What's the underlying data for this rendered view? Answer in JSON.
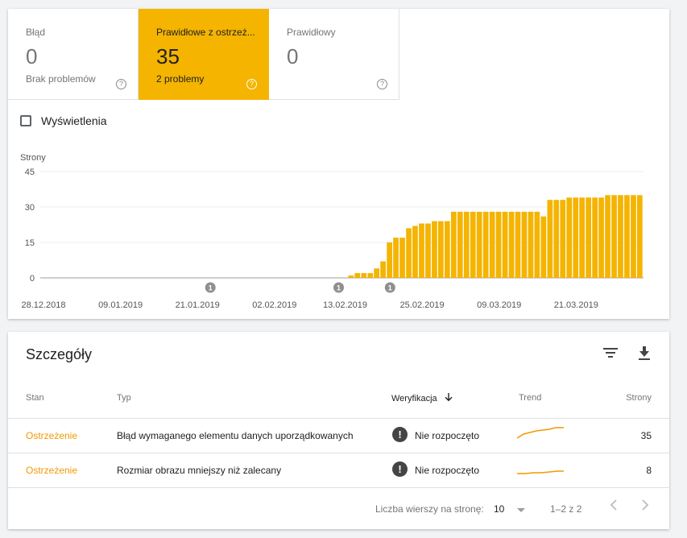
{
  "tiles": [
    {
      "label": "Błąd",
      "count": "0",
      "sub": "Brak problemów",
      "help": "?"
    },
    {
      "label": "Prawidłowe z ostrzeż...",
      "count": "35",
      "sub": "2 problemy",
      "help": "?"
    },
    {
      "label": "Prawidłowy",
      "count": "0",
      "sub": "",
      "help": "?"
    }
  ],
  "colors": {
    "accent": "#f4b400",
    "warning_text": "#f29900"
  },
  "impressions_label": "Wyświetlenia",
  "chart_data": {
    "type": "bar",
    "ylabel": "Strony",
    "ylim": [
      0,
      45
    ],
    "yticks": [
      "45",
      "30",
      "15",
      "0"
    ],
    "xticks": [
      "28.12.2018",
      "09.01.2019",
      "21.01.2019",
      "02.02.2019",
      "13.02.2019",
      "25.02.2019",
      "09.03.2019",
      "21.03.2019"
    ],
    "start_date": "2018-12-28",
    "end_date": "2019-03-31",
    "values": [
      0,
      0,
      0,
      0,
      0,
      0,
      0,
      0,
      0,
      0,
      0,
      0,
      0,
      0,
      0,
      0,
      0,
      0,
      0,
      0,
      0,
      0,
      0,
      0,
      0,
      0,
      0,
      0,
      0,
      0,
      0,
      0,
      0,
      0,
      0,
      0,
      0,
      0,
      0,
      0,
      0,
      0,
      0,
      0,
      0,
      0,
      0,
      0,
      1,
      2,
      2,
      2,
      4,
      7,
      15,
      17,
      17,
      21,
      22,
      23,
      23,
      24,
      24,
      24,
      28,
      28,
      28,
      28,
      28,
      28,
      28,
      28,
      28,
      28,
      28,
      28,
      28,
      28,
      26,
      33,
      33,
      33,
      34,
      34,
      34,
      34,
      34,
      34,
      35,
      35,
      35,
      35,
      35,
      35
    ],
    "annotations": [
      {
        "date": "2019-01-23",
        "label": "1"
      },
      {
        "date": "2019-02-12",
        "label": "1"
      },
      {
        "date": "2019-02-20",
        "label": "1"
      }
    ]
  },
  "details": {
    "title": "Szczegóły",
    "columns": {
      "status": "Stan",
      "type": "Typ",
      "verification": "Weryfikacja",
      "trend": "Trend",
      "pages": "Strony"
    },
    "rows": [
      {
        "status": "Ostrzeżenie",
        "type": "Błąd wymaganego elementu danych uporządkowanych",
        "verification_icon": "!",
        "verification": "Nie rozpoczęto",
        "pages": "35"
      },
      {
        "status": "Ostrzeżenie",
        "type": "Rozmiar obrazu mniejszy niż zalecany",
        "verification_icon": "!",
        "verification": "Nie rozpoczęto",
        "pages": "8"
      }
    ],
    "footer": {
      "rows_label": "Liczba wierszy na stronę:",
      "rows_value": "10",
      "range": "1–2 z 2"
    }
  }
}
